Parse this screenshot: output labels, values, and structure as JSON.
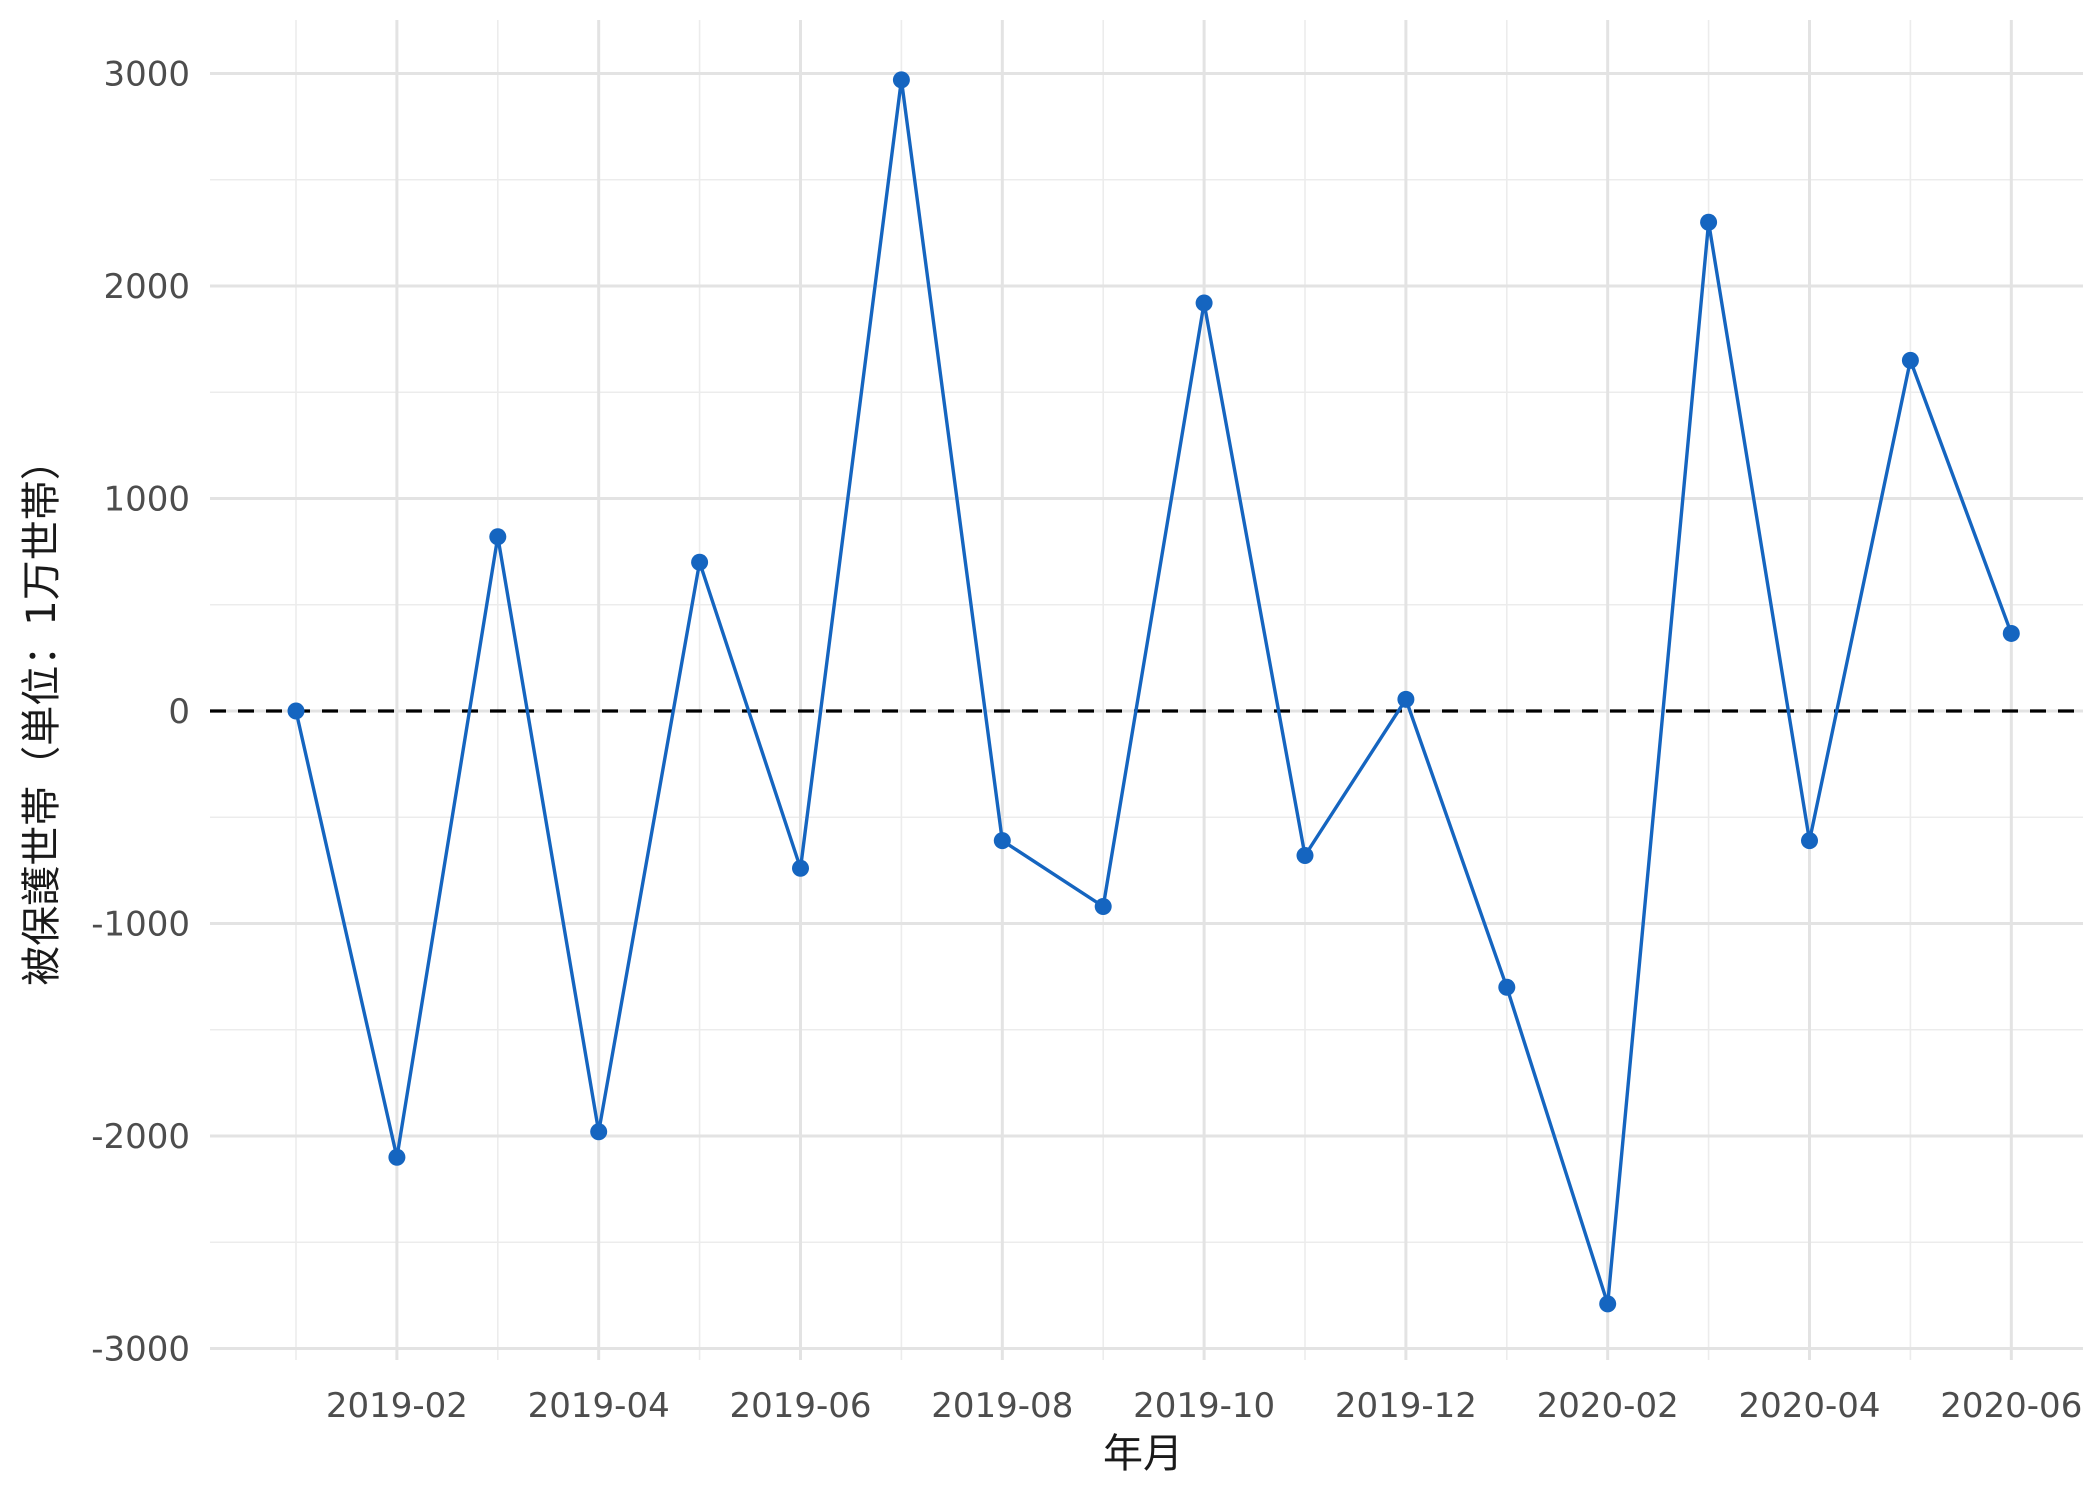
{
  "chart_data": {
    "type": "line",
    "xlabel": "年月",
    "ylabel": "被保護世帯（単位：1万世帯）",
    "x_ticks": [
      "2019-02",
      "2019-04",
      "2019-06",
      "2019-08",
      "2019-10",
      "2019-12",
      "2020-02",
      "2020-04",
      "2020-06"
    ],
    "y_ticks": [
      "-3000",
      "-2000",
      "-1000",
      "0",
      "1000",
      "2000",
      "3000"
    ],
    "ylim": [
      -3000,
      3000
    ],
    "grid": true,
    "reference_line": {
      "y": 0,
      "style": "dashed",
      "color": "#000000"
    },
    "series_color": "#1565C0",
    "x": [
      "2019-01",
      "2019-02",
      "2019-03",
      "2019-04",
      "2019-05",
      "2019-06",
      "2019-07",
      "2019-08",
      "2019-09",
      "2019-10",
      "2019-11",
      "2019-12",
      "2020-01",
      "2020-02",
      "2020-03",
      "2020-04",
      "2020-05",
      "2020-06"
    ],
    "values": [
      0,
      -2100,
      820,
      -1980,
      700,
      -740,
      2970,
      -610,
      -920,
      1920,
      -680,
      55,
      -1300,
      -2790,
      2300,
      -610,
      1650,
      365
    ]
  }
}
